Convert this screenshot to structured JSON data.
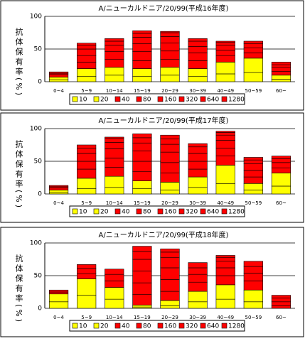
{
  "chart_data": [
    {
      "type": "bar",
      "title": "A/ニューカルドニア/20/99(平成16年度)",
      "ylabel": "抗体保有率(%)",
      "categories": [
        "0~4",
        "5~9",
        "10~14",
        "15~19",
        "20~29",
        "30~39",
        "40~49",
        "50~59",
        "60~"
      ],
      "ylim": [
        0,
        100
      ],
      "yticks": [
        0,
        50,
        100
      ],
      "grid": true,
      "stacked": true,
      "series": [
        {
          "name": "10",
          "color": "#ffff00",
          "values": [
            3,
            8,
            10,
            8,
            10,
            8,
            12,
            14,
            4
          ]
        },
        {
          "name": "20",
          "color": "#ffff00",
          "values": [
            4,
            12,
            12,
            12,
            12,
            12,
            18,
            22,
            6
          ]
        },
        {
          "name": "40",
          "color": "#ff0000",
          "values": [
            4,
            10,
            12,
            12,
            12,
            12,
            10,
            8,
            6
          ]
        },
        {
          "name": "80",
          "color": "#ff0000",
          "values": [
            2,
            10,
            12,
            14,
            13,
            12,
            8,
            8,
            6
          ]
        },
        {
          "name": "160",
          "color": "#ff0000",
          "values": [
            2,
            10,
            10,
            12,
            12,
            10,
            8,
            6,
            4
          ]
        },
        {
          "name": "320",
          "color": "#ff0000",
          "values": [
            0,
            6,
            6,
            10,
            10,
            8,
            4,
            4,
            4
          ]
        },
        {
          "name": "640",
          "color": "#ff0000",
          "values": [
            0,
            3,
            4,
            6,
            6,
            4,
            2,
            0,
            0
          ]
        },
        {
          "name": "1280",
          "color": "#ff0000",
          "values": [
            0,
            0,
            0,
            4,
            2,
            0,
            0,
            0,
            0
          ]
        }
      ]
    },
    {
      "type": "bar",
      "title": "A/ニューカルドニア/20/99(平成17年度)",
      "ylabel": "抗体保有率(%)",
      "categories": [
        "0~4",
        "5~9",
        "10~14",
        "15~19",
        "20~29",
        "30~39",
        "40~49",
        "50~59",
        "60~"
      ],
      "ylim": [
        0,
        100
      ],
      "yticks": [
        0,
        50,
        100
      ],
      "grid": true,
      "stacked": true,
      "series": [
        {
          "name": "10",
          "color": "#ffff00",
          "values": [
            2,
            8,
            10,
            8,
            6,
            10,
            16,
            6,
            12
          ]
        },
        {
          "name": "20",
          "color": "#ffff00",
          "values": [
            4,
            16,
            17,
            12,
            12,
            16,
            28,
            10,
            20
          ]
        },
        {
          "name": "40",
          "color": "#ff0000",
          "values": [
            3,
            14,
            14,
            14,
            14,
            12,
            14,
            10,
            8
          ]
        },
        {
          "name": "80",
          "color": "#ff0000",
          "values": [
            2,
            12,
            14,
            16,
            16,
            12,
            12,
            10,
            8
          ]
        },
        {
          "name": "160",
          "color": "#ff0000",
          "values": [
            2,
            12,
            14,
            16,
            16,
            12,
            12,
            10,
            6
          ]
        },
        {
          "name": "320",
          "color": "#ff0000",
          "values": [
            0,
            8,
            10,
            12,
            12,
            10,
            8,
            6,
            4
          ]
        },
        {
          "name": "640",
          "color": "#ff0000",
          "values": [
            0,
            5,
            6,
            8,
            8,
            5,
            4,
            4,
            0
          ]
        },
        {
          "name": "1280",
          "color": "#ff0000",
          "values": [
            0,
            0,
            2,
            6,
            6,
            0,
            2,
            0,
            0
          ]
        }
      ]
    },
    {
      "type": "bar",
      "title": "A/ニューカルドニア/20/99(平成18年度)",
      "ylabel": "抗体保有率(%)",
      "categories": [
        "0~4",
        "5~9",
        "10~14",
        "15~19",
        "20~29",
        "30~39",
        "40~49",
        "50~59",
        "60~"
      ],
      "ylim": [
        0,
        100
      ],
      "yticks": [
        0,
        50,
        100
      ],
      "grid": true,
      "stacked": true,
      "series": [
        {
          "name": "10",
          "color": "#ffff00",
          "values": [
            10,
            20,
            14,
            2,
            4,
            10,
            14,
            10,
            0
          ]
        },
        {
          "name": "20",
          "color": "#ffff00",
          "values": [
            12,
            25,
            18,
            3,
            8,
            16,
            22,
            18,
            0
          ]
        },
        {
          "name": "40",
          "color": "#ff0000",
          "values": [
            3,
            8,
            10,
            16,
            14,
            14,
            14,
            14,
            4
          ]
        },
        {
          "name": "80",
          "color": "#ff0000",
          "values": [
            3,
            8,
            10,
            18,
            18,
            12,
            12,
            12,
            6
          ]
        },
        {
          "name": "160",
          "color": "#ff0000",
          "values": [
            0,
            6,
            8,
            18,
            18,
            10,
            10,
            10,
            6
          ]
        },
        {
          "name": "320",
          "color": "#ff0000",
          "values": [
            0,
            0,
            0,
            18,
            16,
            8,
            6,
            8,
            4
          ]
        },
        {
          "name": "640",
          "color": "#ff0000",
          "values": [
            0,
            0,
            0,
            12,
            8,
            0,
            3,
            0,
            0
          ]
        },
        {
          "name": "1280",
          "color": "#ff0000",
          "values": [
            0,
            0,
            0,
            8,
            5,
            0,
            0,
            0,
            0
          ]
        }
      ]
    }
  ]
}
